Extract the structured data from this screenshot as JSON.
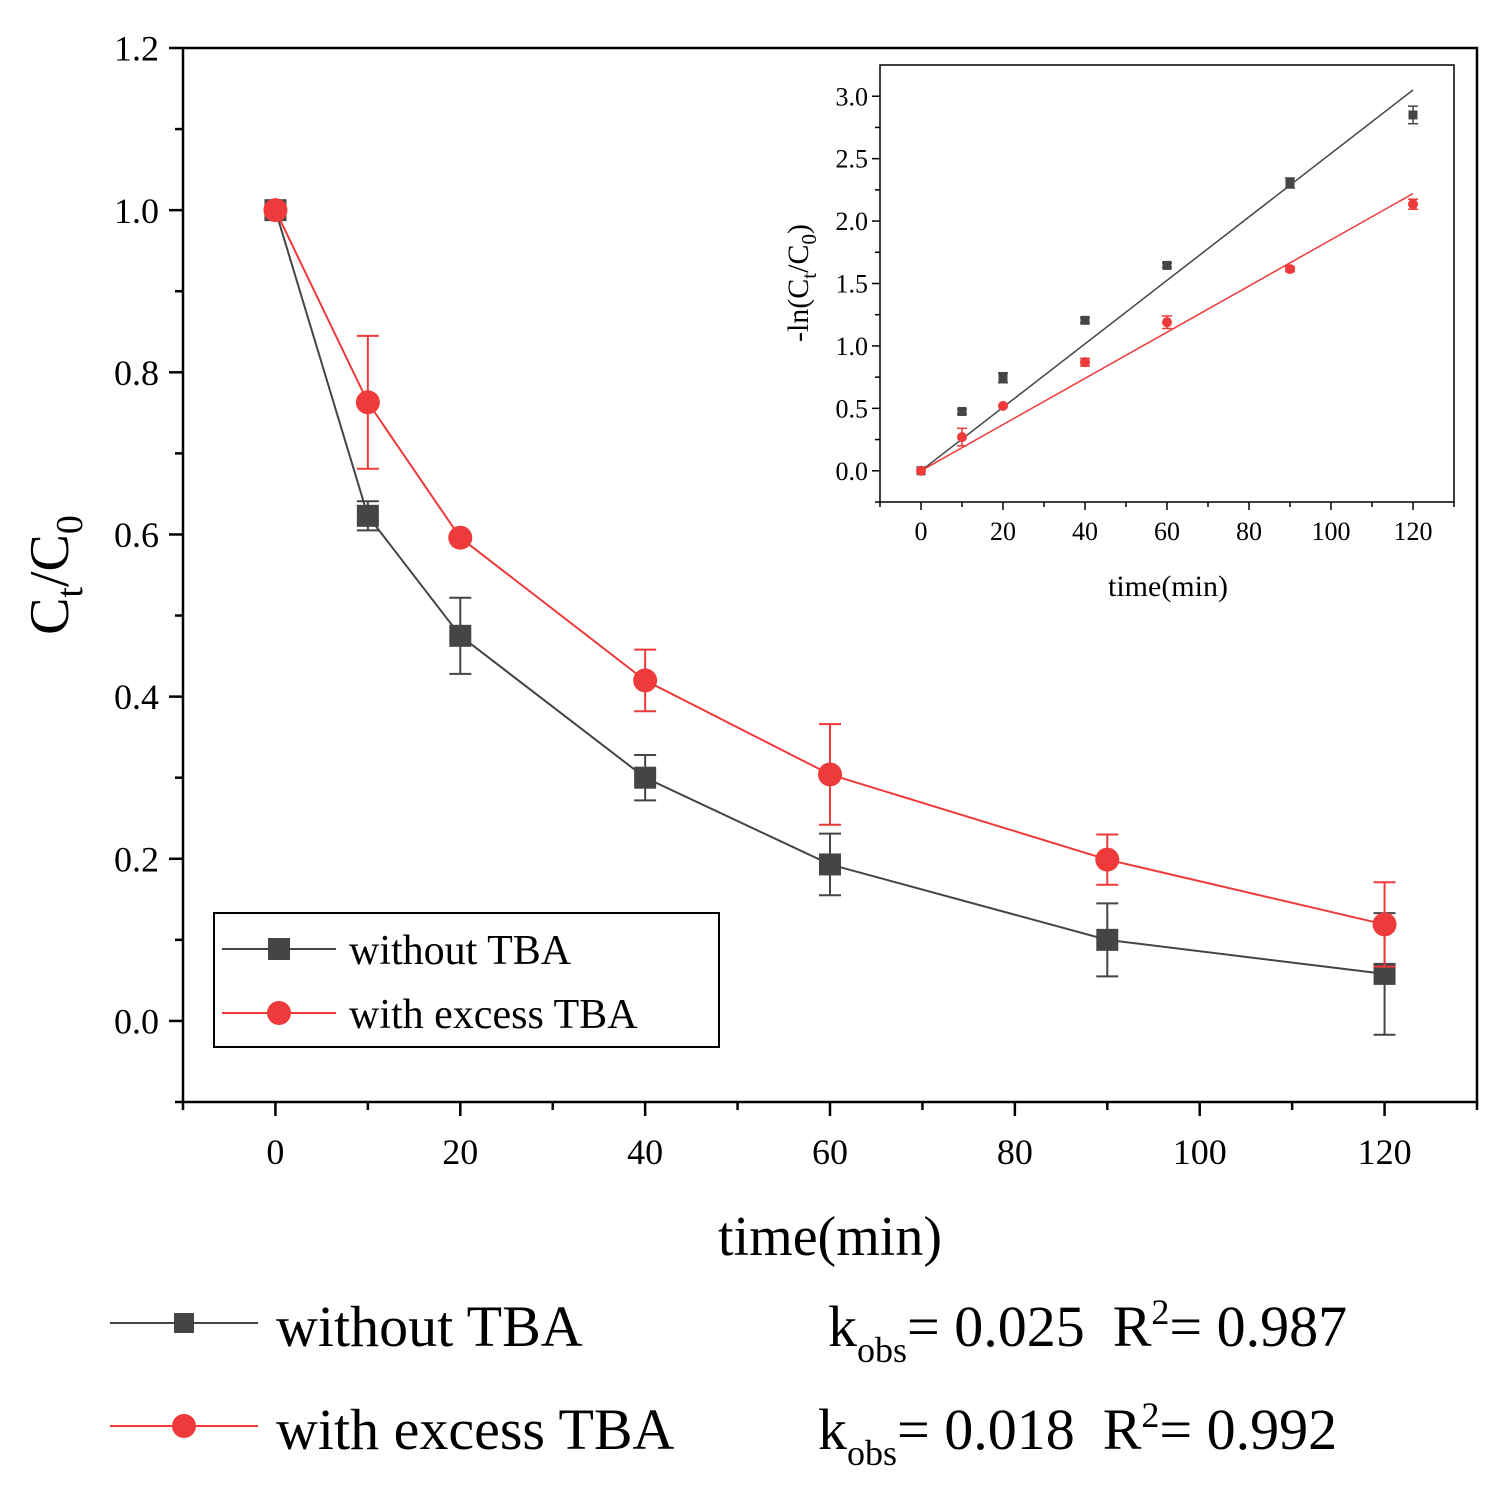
{
  "colors": {
    "series_0": "#454545",
    "series_1": "#ee3a3a",
    "axis": "#000000"
  },
  "chart_data": [
    {
      "type": "line",
      "x": [
        0,
        10,
        20,
        40,
        60,
        90,
        120
      ],
      "xlabel": "time(min)",
      "ylabel_main": "C",
      "ylabel_sub1": "t",
      "ylabel_mid": "/C",
      "ylabel_sub2": "0",
      "xlim": [
        -10,
        130
      ],
      "ylim": [
        -0.1,
        1.2
      ],
      "xticks": [
        0,
        20,
        40,
        60,
        80,
        100,
        120
      ],
      "xtick_labels": [
        "0",
        "20",
        "40",
        "60",
        "80",
        "100",
        "120"
      ],
      "yticks": [
        0.0,
        0.2,
        0.4,
        0.6,
        0.8,
        1.0,
        1.2
      ],
      "ytick_labels": [
        "0.0",
        "0.2",
        "0.4",
        "0.6",
        "0.8",
        "1.0",
        "1.2"
      ],
      "grid": false,
      "legend_position": "bottom-left",
      "series": [
        {
          "name": "without TBA",
          "marker": "square",
          "values": [
            1.0,
            0.623,
            0.475,
            0.3,
            0.193,
            0.1,
            0.058
          ],
          "errors": [
            0.0,
            0.018,
            0.047,
            0.028,
            0.038,
            0.045,
            0.075
          ]
        },
        {
          "name": "with excess TBA",
          "marker": "circle",
          "values": [
            1.0,
            0.763,
            0.596,
            0.42,
            0.304,
            0.199,
            0.119
          ],
          "errors": [
            0.0,
            0.082,
            0.0,
            0.038,
            0.062,
            0.031,
            0.052
          ]
        }
      ]
    },
    {
      "type": "scatter",
      "x": [
        0,
        10,
        20,
        40,
        60,
        90,
        120
      ],
      "xlabel": "time(min)",
      "ylabel_pre": "-ln(C",
      "ylabel_sub1": "t",
      "ylabel_mid": "/C",
      "ylabel_sub2": "0",
      "ylabel_post": ")",
      "xlim": [
        -10,
        130
      ],
      "ylim": [
        -0.25,
        3.25
      ],
      "xticks": [
        0,
        20,
        40,
        60,
        80,
        100,
        120
      ],
      "xtick_labels": [
        "0",
        "20",
        "40",
        "60",
        "80",
        "100",
        "120"
      ],
      "yticks": [
        0.0,
        0.5,
        1.0,
        1.5,
        2.0,
        2.5,
        3.0
      ],
      "ytick_labels": [
        "0.0",
        "0.5",
        "1.0",
        "1.5",
        "2.0",
        "2.5",
        "3.0"
      ],
      "grid": false,
      "series": [
        {
          "marker": "square",
          "values": [
            0.0,
            0.475,
            0.745,
            1.205,
            1.645,
            2.305,
            2.85
          ],
          "errors": [
            0.0,
            0.02,
            0.04,
            0.02,
            0.02,
            0.04,
            0.07
          ],
          "fit_line": [
            [
              0,
              0.0
            ],
            [
              120,
              3.05
            ]
          ]
        },
        {
          "marker": "circle",
          "values": [
            0.0,
            0.27,
            0.52,
            0.87,
            1.19,
            1.615,
            2.135
          ],
          "errors": [
            0.0,
            0.07,
            0.0,
            0.03,
            0.05,
            0.02,
            0.04
          ],
          "fit_line": [
            [
              0,
              0.0
            ],
            [
              120,
              2.22
            ]
          ]
        }
      ]
    }
  ],
  "bottom_legend": [
    {
      "name": "without TBA",
      "k_label": "k",
      "k_sub": "obs",
      "k_value": "= 0.025",
      "r_label": "R",
      "r_sup": "2",
      "r_value": "= 0.987"
    },
    {
      "name": "with excess  TBA",
      "k_label": "k",
      "k_sub": "obs",
      "k_value": "= 0.018",
      "r_label": "R",
      "r_sup": "2",
      "r_value": "= 0.992"
    }
  ]
}
